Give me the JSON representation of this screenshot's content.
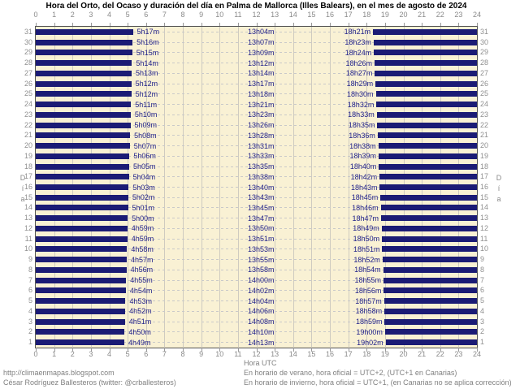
{
  "title": "Hora del Orto, del Ocaso y duración del día en Palma de Mallorca (Illes Balears), en el mes de agosto de 2024",
  "axis": {
    "hours": [
      0,
      1,
      2,
      3,
      4,
      5,
      6,
      7,
      8,
      9,
      10,
      11,
      12,
      13,
      14,
      15,
      16,
      17,
      18,
      19,
      20,
      21,
      22,
      23,
      24
    ],
    "x_label": "Hora UTC",
    "y_label": "Día",
    "y_label_chars": [
      "D",
      "í",
      "a"
    ]
  },
  "footer": {
    "left_line1": "http://climaenmapas.blogspot.com",
    "left_line2": "César Rodríguez Ballesteros (twitter: @crballesteros)",
    "right_line1": "En horario de verano, hora oficial = UTC+2, (UTC+1 en Canarias)",
    "right_line2": "En horario de invierno, hora oficial = UTC+1, (en Canarias no se aplica corrección)"
  },
  "colors": {
    "bar_navy": "#1b1b75",
    "plot_background": "#f9f1d4",
    "time_text": "#22228a",
    "axis_text": "#8a8a8a",
    "footer_text": "#808080",
    "vertical_grid": "#cfcbc0",
    "row_dash": "#c9c9c9",
    "plot_border": "#555555"
  },
  "chart_data": {
    "type": "bar",
    "title": "Hora del Orto, del Ocaso y duración del día en Palma de Mallorca (Illes Balears), en el mes de agosto de 2024",
    "xlabel": "Hora UTC",
    "ylabel": "Día",
    "xlim": [
      0,
      24
    ],
    "grid": true,
    "description": "Navy bars span night hours (00h to sunrise, and sunset to 24h); cream gap is daylight. Rows are days 31 (top) to 1 (bottom) of August 2024.",
    "rows": [
      {
        "day": 31,
        "orto": "5h17m",
        "duracion": "13h04m",
        "ocaso": "18h21m"
      },
      {
        "day": 30,
        "orto": "5h16m",
        "duracion": "13h07m",
        "ocaso": "18h23m"
      },
      {
        "day": 29,
        "orto": "5h15m",
        "duracion": "13h09m",
        "ocaso": "18h24m"
      },
      {
        "day": 28,
        "orto": "5h14m",
        "duracion": "13h12m",
        "ocaso": "18h26m"
      },
      {
        "day": 27,
        "orto": "5h13m",
        "duracion": "13h14m",
        "ocaso": "18h27m"
      },
      {
        "day": 26,
        "orto": "5h12m",
        "duracion": "13h17m",
        "ocaso": "18h29m"
      },
      {
        "day": 25,
        "orto": "5h12m",
        "duracion": "13h18m",
        "ocaso": "18h30m"
      },
      {
        "day": 24,
        "orto": "5h11m",
        "duracion": "13h21m",
        "ocaso": "18h32m"
      },
      {
        "day": 23,
        "orto": "5h10m",
        "duracion": "13h23m",
        "ocaso": "18h33m"
      },
      {
        "day": 22,
        "orto": "5h09m",
        "duracion": "13h26m",
        "ocaso": "18h35m"
      },
      {
        "day": 21,
        "orto": "5h08m",
        "duracion": "13h28m",
        "ocaso": "18h36m"
      },
      {
        "day": 20,
        "orto": "5h07m",
        "duracion": "13h31m",
        "ocaso": "18h38m"
      },
      {
        "day": 19,
        "orto": "5h06m",
        "duracion": "13h33m",
        "ocaso": "18h39m"
      },
      {
        "day": 18,
        "orto": "5h05m",
        "duracion": "13h35m",
        "ocaso": "18h40m"
      },
      {
        "day": 17,
        "orto": "5h04m",
        "duracion": "13h38m",
        "ocaso": "18h42m"
      },
      {
        "day": 16,
        "orto": "5h03m",
        "duracion": "13h40m",
        "ocaso": "18h43m"
      },
      {
        "day": 15,
        "orto": "5h02m",
        "duracion": "13h43m",
        "ocaso": "18h45m"
      },
      {
        "day": 14,
        "orto": "5h01m",
        "duracion": "13h45m",
        "ocaso": "18h46m"
      },
      {
        "day": 13,
        "orto": "5h00m",
        "duracion": "13h47m",
        "ocaso": "18h47m"
      },
      {
        "day": 12,
        "orto": "4h59m",
        "duracion": "13h50m",
        "ocaso": "18h49m"
      },
      {
        "day": 11,
        "orto": "4h59m",
        "duracion": "13h51m",
        "ocaso": "18h50m"
      },
      {
        "day": 10,
        "orto": "4h58m",
        "duracion": "13h53m",
        "ocaso": "18h51m"
      },
      {
        "day": 9,
        "orto": "4h57m",
        "duracion": "13h55m",
        "ocaso": "18h52m"
      },
      {
        "day": 8,
        "orto": "4h56m",
        "duracion": "13h58m",
        "ocaso": "18h54m"
      },
      {
        "day": 7,
        "orto": "4h55m",
        "duracion": "14h00m",
        "ocaso": "18h55m"
      },
      {
        "day": 6,
        "orto": "4h54m",
        "duracion": "14h02m",
        "ocaso": "18h56m"
      },
      {
        "day": 5,
        "orto": "4h53m",
        "duracion": "14h04m",
        "ocaso": "18h57m"
      },
      {
        "day": 4,
        "orto": "4h52m",
        "duracion": "14h06m",
        "ocaso": "18h58m"
      },
      {
        "day": 3,
        "orto": "4h51m",
        "duracion": "14h08m",
        "ocaso": "18h59m"
      },
      {
        "day": 2,
        "orto": "4h50m",
        "duracion": "14h10m",
        "ocaso": "19h00m"
      },
      {
        "day": 1,
        "orto": "4h49m",
        "duracion": "14h13m",
        "ocaso": "19h02m"
      }
    ]
  }
}
